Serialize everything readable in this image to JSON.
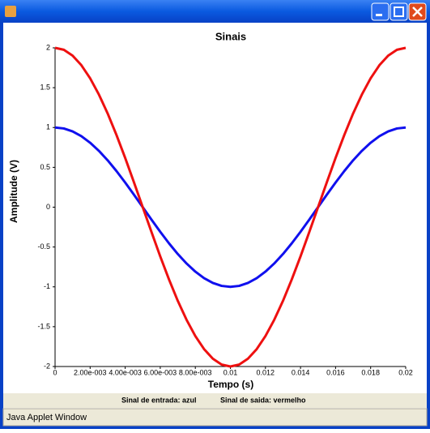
{
  "chart_data": {
    "type": "line",
    "title": "Sinais",
    "x_label": "Tempo (s)",
    "y_label": "Amplitude (V)",
    "x": [
      0,
      0.0005,
      0.001,
      0.0015,
      0.002,
      0.0025,
      0.003,
      0.0035,
      0.004,
      0.0045,
      0.005,
      0.0055,
      0.006,
      0.0065,
      0.007,
      0.0075,
      0.008,
      0.0085,
      0.009,
      0.0095,
      0.01,
      0.0105,
      0.011,
      0.0115,
      0.012,
      0.0125,
      0.013,
      0.0135,
      0.014,
      0.0145,
      0.015,
      0.0155,
      0.016,
      0.0165,
      0.017,
      0.0175,
      0.018,
      0.0185,
      0.019,
      0.0195,
      0.02
    ],
    "series": [
      {
        "color": "#1010ee",
        "values": [
          1,
          0.988,
          0.951,
          0.891,
          0.809,
          0.707,
          0.588,
          0.454,
          0.309,
          0.156,
          0,
          -0.156,
          -0.309,
          -0.454,
          -0.588,
          -0.707,
          -0.809,
          -0.891,
          -0.951,
          -0.988,
          -1,
          -0.988,
          -0.951,
          -0.891,
          -0.809,
          -0.707,
          -0.588,
          -0.454,
          -0.309,
          -0.156,
          0,
          0.156,
          0.309,
          0.454,
          0.588,
          0.707,
          0.809,
          0.891,
          0.951,
          0.988,
          1
        ]
      },
      {
        "color": "#ee1010",
        "values": [
          2,
          1.976,
          1.902,
          1.782,
          1.618,
          1.414,
          1.176,
          0.908,
          0.618,
          0.312,
          0,
          -0.312,
          -0.618,
          -0.908,
          -1.176,
          -1.414,
          -1.618,
          -1.782,
          -1.902,
          -1.976,
          -2,
          -1.976,
          -1.902,
          -1.782,
          -1.618,
          -1.414,
          -1.176,
          -0.908,
          -0.618,
          -0.312,
          0,
          0.312,
          0.618,
          0.908,
          1.176,
          1.414,
          1.618,
          1.782,
          1.902,
          1.976,
          2
        ]
      }
    ],
    "xlim": [
      0,
      0.02
    ],
    "ylim": [
      -2,
      2
    ],
    "xticks": [
      0,
      {
        "value": 0.002,
        "label": "2.00e-003"
      },
      {
        "value": 0.004,
        "label": "4.00e-003"
      },
      {
        "value": 0.006,
        "label": "6.00e-003"
      },
      {
        "value": 0.008,
        "label": "8.00e-003"
      },
      0.01,
      0.012,
      0.014,
      0.016,
      0.018,
      0.02
    ],
    "yticks": [
      2,
      1.5,
      1,
      0.5,
      0,
      -0.5,
      -1,
      -1.5,
      -2
    ],
    "grid": false
  },
  "legend_notes": [
    "Sinal de entrada: azul",
    "Sinal de saida: vermelho"
  ],
  "status_bar": "Java Applet Window"
}
